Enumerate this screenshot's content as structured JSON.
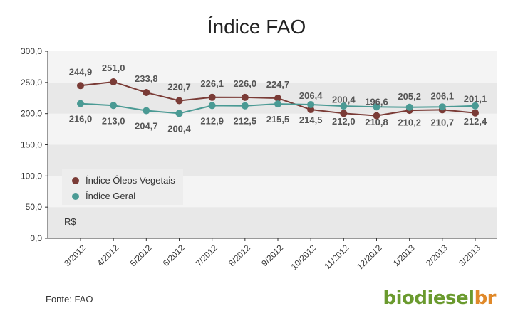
{
  "chart_data": {
    "type": "line",
    "title": "Índice FAO",
    "categories": [
      "3/2012",
      "4/2012",
      "5/2012",
      "6/2012",
      "7/2012",
      "8/2012",
      "9/2012",
      "10/2012",
      "11/2012",
      "12/2012",
      "1/2013",
      "2/2013",
      "3/2013"
    ],
    "series": [
      {
        "name": "Índice Óleos Vegetais",
        "color": "#7a3b36",
        "values": [
          244.9,
          251.0,
          233.8,
          220.7,
          226.1,
          226.0,
          224.7,
          206.4,
          200.4,
          196.6,
          205.2,
          206.1,
          201.1
        ],
        "labels": [
          "244,9",
          "251,0",
          "233,8",
          "220,7",
          "226,1",
          "226,0",
          "224,7",
          "206,4",
          "200,4",
          "196,6",
          "205,2",
          "206,1",
          "201,1"
        ]
      },
      {
        "name": "Índice Geral",
        "color": "#4a9a94",
        "values": [
          216.0,
          213.0,
          204.7,
          200.4,
          212.9,
          212.5,
          215.5,
          214.5,
          212.0,
          210.8,
          210.2,
          210.7,
          212.4
        ],
        "labels": [
          "216,0",
          "213,0",
          "204,7",
          "200,4",
          "212,9",
          "212,5",
          "215,5",
          "214,5",
          "212,0",
          "210,8",
          "210,2",
          "210,7",
          "212,4"
        ]
      }
    ],
    "ylim": [
      0,
      300
    ],
    "yticks": [
      0,
      50,
      100,
      150,
      200,
      250,
      300
    ],
    "ytick_labels": [
      "0,0",
      "50,0",
      "100,0",
      "150,0",
      "200,0",
      "250,0",
      "300,0"
    ],
    "ylabel": "R$",
    "xlabel": "",
    "legend_position": "lower-left inside"
  },
  "source": "Fonte: FAO",
  "logo": {
    "part1": "biodiesel",
    "part2": "br"
  }
}
